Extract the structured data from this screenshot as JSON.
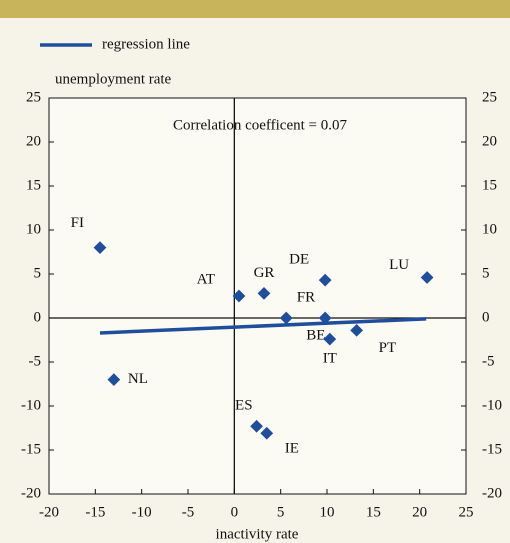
{
  "chart_data": {
    "type": "scatter",
    "annotation": "Correlation coefficent = 0.07",
    "ylabel": "unemployment rate",
    "xlabel": "inactivity rate",
    "xlim": [
      -20,
      25
    ],
    "ylim": [
      -20,
      25
    ],
    "y2lim": [
      -20,
      25
    ],
    "xticks": [
      -20,
      -15,
      -10,
      -5,
      0,
      5,
      10,
      15,
      20,
      25
    ],
    "yticks": [
      -20,
      -15,
      -10,
      -5,
      0,
      5,
      10,
      15,
      20,
      25
    ],
    "y2ticks": [
      -20,
      -15,
      -10,
      -5,
      0,
      5,
      10,
      15,
      20,
      25
    ],
    "points": {
      "color": "#1f4e9c",
      "labels": [
        "FI",
        "NL",
        "AT",
        "GR",
        "DE",
        "LU",
        "FR",
        "BE",
        "IT",
        "PT",
        "ES",
        "IE"
      ],
      "x": [
        -14.5,
        -13,
        0.5,
        3.2,
        9.8,
        20.8,
        9.8,
        5.6,
        10.3,
        13.2,
        2.4,
        3.5
      ],
      "y": [
        8,
        -7,
        2.5,
        2.8,
        4.3,
        4.6,
        0,
        0,
        -2.4,
        -1.4,
        -12.3,
        -13.1
      ]
    },
    "regression": {
      "name": "regression line",
      "color": "#1f4e9c",
      "x": [
        -14.5,
        20.7
      ],
      "y": [
        -1.7,
        -0.1
      ]
    }
  }
}
